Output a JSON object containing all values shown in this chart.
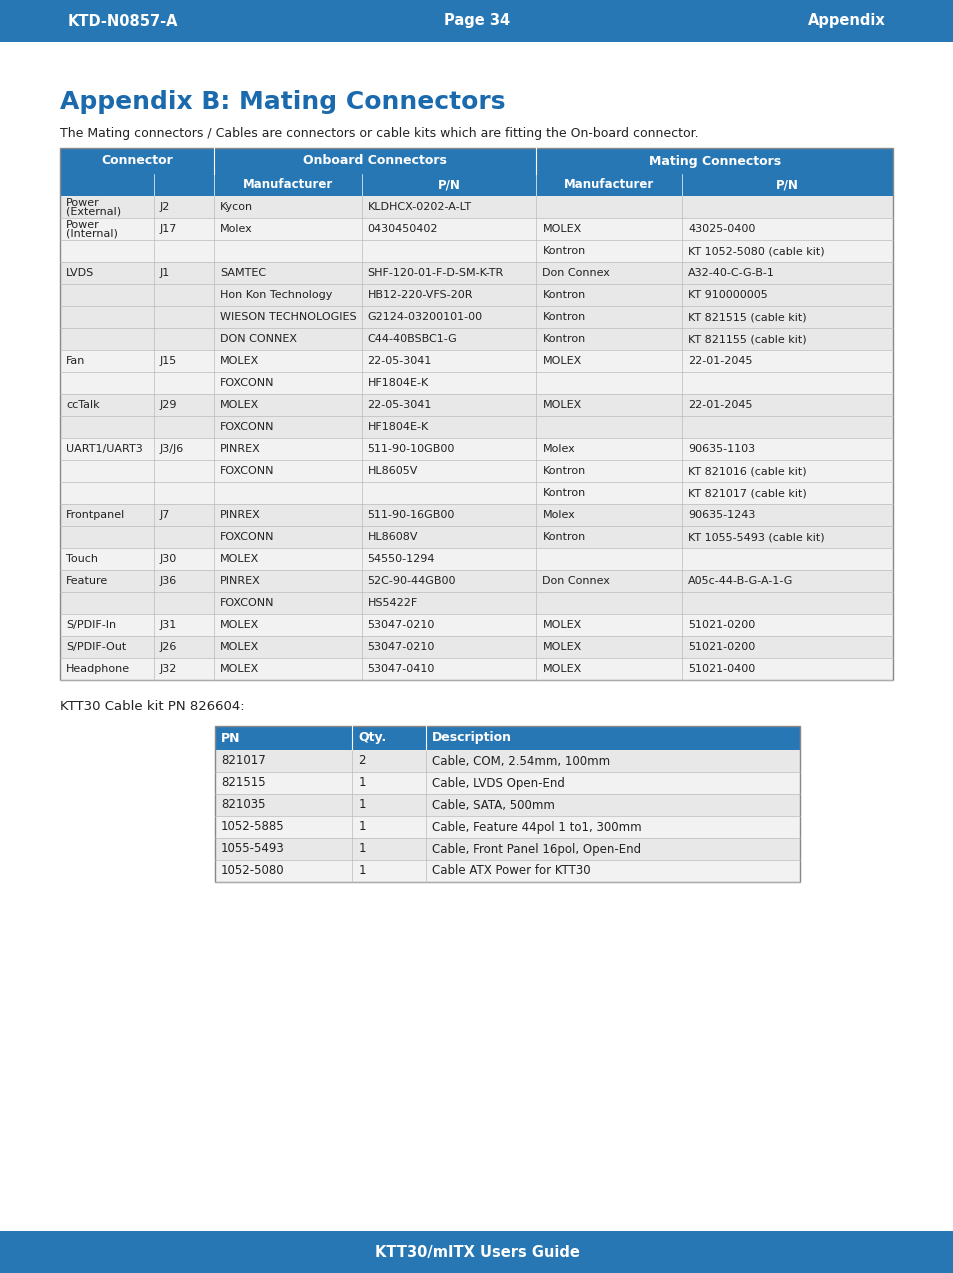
{
  "header_left": "KTD-N0857-A",
  "header_center": "Page 34",
  "header_right": "Appendix",
  "header_bg": "#2777b5",
  "title": "Appendix B: Mating Connectors",
  "title_color": "#1a6aad",
  "subtitle": "The Mating connectors / Cables are connectors or cable kits which are fitting the On-board connector.",
  "footer_text": "KTT30/mITX Users Guide",
  "footer_bg": "#2777b5",
  "table1_header_bg": "#2777b5",
  "table1_row_colors": [
    "#e8e8e8",
    "#f2f2f2"
  ],
  "table1_rows": [
    [
      "Power\n(External)",
      "J2",
      "Kycon",
      "KLDHCX-0202-A-LT",
      "",
      ""
    ],
    [
      "Power\n(Internal)",
      "J17",
      "Molex",
      "0430450402",
      "MOLEX",
      "43025-0400"
    ],
    [
      "",
      "",
      "",
      "",
      "Kontron",
      "KT 1052-5080 (cable kit)"
    ],
    [
      "LVDS",
      "J1",
      "SAMTEC",
      "SHF-120-01-F-D-SM-K-TR",
      "Don Connex",
      "A32-40-C-G-B-1"
    ],
    [
      "",
      "",
      "Hon Kon Technology",
      "HB12-220-VFS-20R",
      "Kontron",
      "KT 910000005"
    ],
    [
      "",
      "",
      "WIESON TECHNOLOGIES",
      "G2124-03200101-00",
      "Kontron",
      "KT 821515 (cable kit)"
    ],
    [
      "",
      "",
      "DON CONNEX",
      "C44-40BSBC1-G",
      "Kontron",
      "KT 821155 (cable kit)"
    ],
    [
      "Fan",
      "J15",
      "MOLEX",
      "22-05-3041",
      "MOLEX",
      "22-01-2045"
    ],
    [
      "",
      "",
      "FOXCONN",
      "HF1804E-K",
      "",
      ""
    ],
    [
      "ccTalk",
      "J29",
      "MOLEX",
      "22-05-3041",
      "MOLEX",
      "22-01-2045"
    ],
    [
      "",
      "",
      "FOXCONN",
      "HF1804E-K",
      "",
      ""
    ],
    [
      "UART1/UART3",
      "J3/J6",
      "PINREX",
      "511-90-10GB00",
      "Molex",
      "90635-1103"
    ],
    [
      "",
      "",
      "FOXCONN",
      "HL8605V",
      "Kontron",
      "KT 821016 (cable kit)"
    ],
    [
      "",
      "",
      "",
      "",
      "Kontron",
      "KT 821017 (cable kit)"
    ],
    [
      "Frontpanel",
      "J7",
      "PINREX",
      "511-90-16GB00",
      "Molex",
      "90635-1243"
    ],
    [
      "",
      "",
      "FOXCONN",
      "HL8608V",
      "Kontron",
      "KT 1055-5493 (cable kit)"
    ],
    [
      "Touch",
      "J30",
      "MOLEX",
      "54550-1294",
      "",
      ""
    ],
    [
      "Feature",
      "J36",
      "PINREX",
      "52C-90-44GB00",
      "Don Connex",
      "A05c-44-B-G-A-1-G"
    ],
    [
      "",
      "",
      "FOXCONN",
      "HS5422F",
      "",
      ""
    ],
    [
      "S/PDIF-In",
      "J31",
      "MOLEX",
      "53047-0210",
      "MOLEX",
      "51021-0200"
    ],
    [
      "S/PDIF-Out",
      "J26",
      "MOLEX",
      "53047-0210",
      "MOLEX",
      "51021-0200"
    ],
    [
      "Headphone",
      "J32",
      "MOLEX",
      "53047-0410",
      "MOLEX",
      "51021-0400"
    ]
  ],
  "cable_kit_text": "KTT30 Cable kit PN 826604:",
  "table2_header_bg": "#2777b5",
  "table2_col_headers": [
    "PN",
    "Qty.",
    "Description"
  ],
  "table2_rows": [
    [
      "821017",
      "2",
      "Cable, COM, 2.54mm, 100mm"
    ],
    [
      "821515",
      "1",
      "Cable, LVDS Open-End"
    ],
    [
      "821035",
      "1",
      "Cable, SATA, 500mm"
    ],
    [
      "1052-5885",
      "1",
      "Cable, Feature 44pol 1 to1, 300mm"
    ],
    [
      "1055-5493",
      "1",
      "Cable, Front Panel 16pol, Open-End"
    ],
    [
      "1052-5080",
      "1",
      "Cable ATX Power for KTT30"
    ]
  ]
}
